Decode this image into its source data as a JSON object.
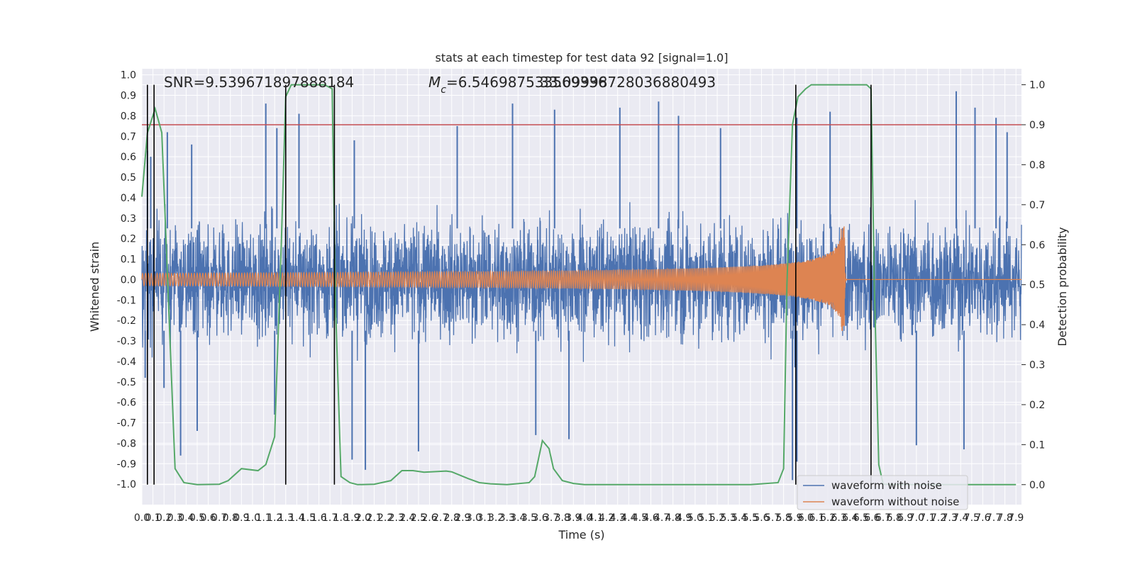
{
  "chart_data": {
    "type": "line",
    "title": "stats at each timestep for test data 92 [signal=1.0]",
    "xlabel": "Time (s)",
    "ylabel": "Whitened strain",
    "ylabel_right": "Detection probability",
    "xlim": [
      0.0,
      7.95
    ],
    "ylim": [
      -1.1,
      1.03
    ],
    "ylim_right": [
      -0.05,
      1.04
    ],
    "x_ticks": [
      0.0,
      0.1,
      0.2,
      0.3,
      0.4,
      0.5,
      0.6,
      0.7,
      0.8,
      0.9,
      1.0,
      1.1,
      1.2,
      1.3,
      1.4,
      1.5,
      1.6,
      1.7,
      1.8,
      1.9,
      2.0,
      2.1,
      2.2,
      2.3,
      2.4,
      2.5,
      2.6,
      2.7,
      2.8,
      2.9,
      3.0,
      3.1,
      3.2,
      3.3,
      3.4,
      3.5,
      3.6,
      3.7,
      3.8,
      3.9,
      4.0,
      4.1,
      4.2,
      4.3,
      4.4,
      4.5,
      4.6,
      4.7,
      4.8,
      4.9,
      5.0,
      5.1,
      5.2,
      5.3,
      5.4,
      5.5,
      5.6,
      5.7,
      5.8,
      5.9,
      6.0,
      6.1,
      6.2,
      6.3,
      6.4,
      6.5,
      6.6,
      6.7,
      6.8,
      6.9,
      7.0,
      7.1,
      7.2,
      7.3,
      7.4,
      7.5,
      7.6,
      7.7,
      7.8,
      7.9
    ],
    "y_ticks": [
      1.0,
      0.9,
      0.8,
      0.7,
      0.6,
      0.5,
      0.4,
      0.3,
      0.2,
      0.1,
      0.0,
      -0.1,
      -0.2,
      -0.3,
      -0.4,
      -0.5,
      -0.6,
      -0.7,
      -0.8,
      -0.9,
      -1.0
    ],
    "y_ticks_right": [
      1.0,
      0.9,
      0.8,
      0.7,
      0.6,
      0.5,
      0.4,
      0.3,
      0.2,
      0.1,
      0.0
    ],
    "annotations": {
      "snr": "SNR=9.539671897888184",
      "mc_symbol": "M",
      "mc_subscript": "c",
      "mc_value": "=6.546987533569336",
      "mc_overlap": "33.09998728036880493"
    },
    "threshold": {
      "value": 0.9,
      "axis": "right",
      "color": "#c44e52"
    },
    "vertical_markers": [
      0.05,
      0.11,
      1.3,
      1.74,
      5.91,
      6.59
    ],
    "series": [
      {
        "name": "waveform with noise",
        "color": "#4c72b0",
        "kind": "noise",
        "typical_range": [
          -0.55,
          0.55
        ],
        "peaks_up": [
          [
            0.05,
            0.63
          ],
          [
            0.08,
            0.6
          ],
          [
            0.23,
            0.72
          ],
          [
            0.45,
            0.66
          ],
          [
            1.12,
            0.86
          ],
          [
            1.22,
            0.74
          ],
          [
            1.42,
            0.81
          ],
          [
            1.92,
            0.68
          ],
          [
            2.85,
            0.75
          ],
          [
            3.35,
            0.86
          ],
          [
            3.73,
            0.83
          ],
          [
            4.32,
            0.84
          ],
          [
            4.67,
            0.87
          ],
          [
            4.85,
            0.8
          ],
          [
            5.23,
            0.74
          ],
          [
            5.92,
            0.79
          ],
          [
            6.22,
            0.82
          ],
          [
            7.36,
            0.92
          ],
          [
            7.53,
            0.84
          ],
          [
            7.72,
            0.79
          ],
          [
            7.82,
            0.72
          ]
        ],
        "peaks_down": [
          [
            0.03,
            -0.48
          ],
          [
            0.2,
            -0.53
          ],
          [
            0.35,
            -0.86
          ],
          [
            0.5,
            -0.74
          ],
          [
            1.2,
            -0.66
          ],
          [
            1.9,
            -0.88
          ],
          [
            2.02,
            -0.93
          ],
          [
            2.5,
            -0.84
          ],
          [
            3.56,
            -0.76
          ],
          [
            3.86,
            -0.78
          ],
          [
            5.88,
            -0.98
          ],
          [
            5.92,
            -0.89
          ],
          [
            7.0,
            -0.81
          ],
          [
            7.43,
            -0.83
          ]
        ]
      },
      {
        "name": "waveform without noise",
        "color": "#dd8452",
        "kind": "chirp",
        "t_merge": 6.35,
        "t_start_amp": 0.03,
        "peak_amp": 0.26
      },
      {
        "name": "detection probability",
        "color": "#55a868",
        "axis": "right",
        "x": [
          0.0,
          0.05,
          0.12,
          0.18,
          0.3,
          0.38,
          0.5,
          0.7,
          0.78,
          0.9,
          1.05,
          1.12,
          1.2,
          1.26,
          1.3,
          1.35,
          1.42,
          1.5,
          1.65,
          1.72,
          1.75,
          1.8,
          1.88,
          1.95,
          2.1,
          2.25,
          2.35,
          2.45,
          2.55,
          2.75,
          2.8,
          2.95,
          3.05,
          3.15,
          3.3,
          3.5,
          3.55,
          3.62,
          3.68,
          3.72,
          3.8,
          3.9,
          4.0,
          4.2,
          5.5,
          5.75,
          5.8,
          5.83,
          5.88,
          5.93,
          6.0,
          6.05,
          6.15,
          6.4,
          6.55,
          6.59,
          6.62,
          6.66,
          6.7,
          6.8,
          7.0,
          7.5,
          7.9
        ],
        "y": [
          0.72,
          0.88,
          0.94,
          0.88,
          0.04,
          0.005,
          0.0,
          0.001,
          0.01,
          0.04,
          0.035,
          0.05,
          0.12,
          0.6,
          0.97,
          1.0,
          1.0,
          1.0,
          1.0,
          0.99,
          0.45,
          0.02,
          0.005,
          0.0,
          0.001,
          0.01,
          0.035,
          0.035,
          0.031,
          0.034,
          0.032,
          0.015,
          0.005,
          0.002,
          0.0,
          0.005,
          0.02,
          0.11,
          0.09,
          0.04,
          0.01,
          0.003,
          0.0,
          0.0,
          0.0,
          0.005,
          0.04,
          0.5,
          0.9,
          0.97,
          0.99,
          1.0,
          1.0,
          1.0,
          1.0,
          0.99,
          0.5,
          0.05,
          0.001,
          0.0,
          0.0,
          0.0,
          0.0
        ]
      }
    ],
    "legend": {
      "position": "lower-right",
      "entries": [
        {
          "label": "waveform with noise",
          "color": "#4c72b0"
        },
        {
          "label": "waveform without noise",
          "color": "#dd8452"
        }
      ]
    }
  }
}
